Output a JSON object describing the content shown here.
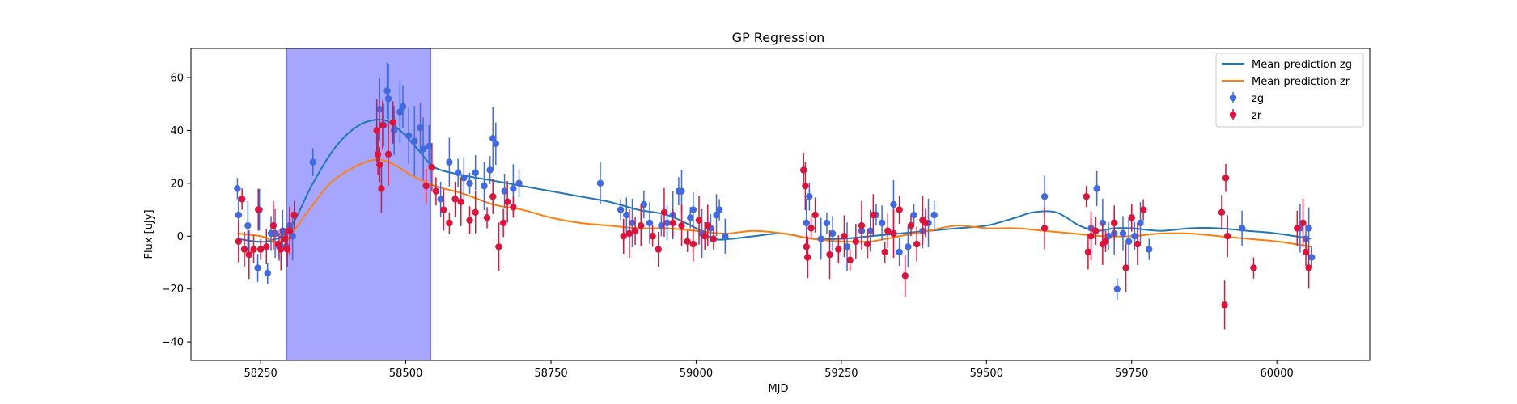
{
  "chart_data": {
    "type": "scatter",
    "title": "GP Regression",
    "xlabel": "MJD",
    "ylabel": "Flux [uJy]",
    "xlim": [
      58130,
      60160
    ],
    "ylim": [
      -47,
      71
    ],
    "xticks": [
      58250,
      58500,
      58750,
      59000,
      59250,
      59500,
      59750,
      60000
    ],
    "yticks": [
      -40,
      -20,
      0,
      20,
      40,
      60
    ],
    "legend_position": "top-right",
    "highlight_span": {
      "x0": 58295,
      "x1": 58543,
      "color": "#a6a6ff"
    },
    "lines": [
      {
        "name": "Mean prediction zg",
        "color": "#1f77b4",
        "x": [
          58210,
          58260,
          58300,
          58340,
          58380,
          58420,
          58460,
          58490,
          58520,
          58550,
          58600,
          58650,
          58700,
          58750,
          58800,
          58850,
          58900,
          58950,
          59000,
          59030,
          59060,
          59100,
          59150,
          59200,
          59250,
          59300,
          59350,
          59400,
          59450,
          59500,
          59550,
          59580,
          59620,
          59660,
          59690,
          59720,
          59750,
          59800,
          59850,
          59900,
          59950,
          60000,
          60060
        ],
        "y": [
          -1,
          -2,
          3,
          20,
          34,
          42,
          44,
          40,
          33,
          26,
          23,
          21,
          19,
          17,
          15,
          13,
          10,
          8,
          3,
          -1,
          -1,
          0,
          1,
          -1,
          -1,
          0,
          1,
          2,
          3,
          4,
          7,
          9,
          9,
          4,
          2,
          3,
          3,
          2,
          3,
          3,
          2,
          1,
          -1
        ]
      },
      {
        "name": "Mean prediction zr",
        "color": "#ff7f0e",
        "x": [
          58210,
          58250,
          58290,
          58330,
          58370,
          58410,
          58450,
          58480,
          58510,
          58550,
          58600,
          58650,
          58700,
          58750,
          58800,
          58850,
          58900,
          58950,
          59000,
          59050,
          59100,
          59150,
          59200,
          59250,
          59300,
          59350,
          59400,
          59450,
          59500,
          59550,
          59600,
          59650,
          59700,
          59750,
          59800,
          59850,
          59900,
          59950,
          60000,
          60060
        ],
        "y": [
          1,
          0,
          -2,
          9,
          20,
          26,
          29,
          27,
          23,
          19,
          16,
          12,
          10,
          7,
          5,
          4,
          3,
          3,
          2,
          1,
          2,
          1,
          -1,
          -2,
          -2,
          0,
          2,
          4,
          3,
          3,
          2,
          1,
          0,
          0,
          1,
          1,
          0,
          -1,
          -2,
          -4
        ]
      }
    ],
    "series": [
      {
        "name": "zg",
        "color": "#4169e1",
        "x": [
          58210,
          58212,
          58228,
          58245,
          58248,
          58262,
          58268,
          58275,
          58282,
          58288,
          58294,
          58300,
          58305,
          58340,
          58455,
          58462,
          58468,
          58470,
          58480,
          58490,
          58495,
          58505,
          58515,
          58525,
          58530,
          58540,
          58560,
          58575,
          58590,
          58600,
          58610,
          58620,
          58635,
          58645,
          58650,
          58655,
          58670,
          58685,
          58695,
          58835,
          58870,
          58880,
          58890,
          58910,
          58920,
          58940,
          58950,
          58960,
          58970,
          58975,
          58990,
          58995,
          59010,
          59025,
          59035,
          59040,
          59050,
          59190,
          59195,
          59215,
          59225,
          59235,
          59260,
          59285,
          59300,
          59310,
          59320,
          59340,
          59350,
          59365,
          59375,
          59390,
          59400,
          59410,
          59600,
          59680,
          59690,
          59700,
          59710,
          59720,
          59725,
          59735,
          59745,
          59755,
          59765,
          59780,
          59940,
          60040,
          60050,
          60055,
          60060
        ],
        "y": [
          18,
          8,
          4,
          -12,
          10,
          -14,
          1,
          1,
          -4,
          2,
          -4,
          4,
          0,
          28,
          48,
          42,
          55,
          52,
          40,
          47,
          49,
          38,
          36,
          41,
          33,
          34,
          14,
          28,
          24,
          22,
          20,
          24,
          19,
          25,
          37,
          35,
          17,
          18,
          20,
          20,
          10,
          8,
          5,
          12,
          5,
          4,
          5,
          8,
          17,
          17,
          7,
          10,
          1,
          3,
          8,
          10,
          0,
          5,
          15,
          -1,
          5,
          1,
          -4,
          2,
          2,
          8,
          5,
          12,
          -6,
          -4,
          8,
          2,
          5,
          8,
          15,
          3,
          18,
          5,
          0,
          1,
          -20,
          1,
          -2,
          0,
          5,
          -5,
          3,
          3,
          -1,
          3,
          -8
        ]
      },
      {
        "name": "zr",
        "color": "#dc143c",
        "x": [
          58212,
          58218,
          58222,
          58230,
          58238,
          58246,
          58250,
          58260,
          58272,
          58280,
          58285,
          58292,
          58296,
          58300,
          58308,
          58450,
          58452,
          58455,
          58458,
          58460,
          58470,
          58478,
          58535,
          58545,
          58552,
          58565,
          58575,
          58585,
          58595,
          58610,
          58620,
          58640,
          58650,
          58660,
          58668,
          58675,
          58685,
          58875,
          58885,
          58895,
          58905,
          58925,
          58935,
          58945,
          58960,
          58975,
          58985,
          58995,
          59005,
          59015,
          59020,
          59030,
          59185,
          59188,
          59190,
          59192,
          59198,
          59205,
          59230,
          59245,
          59255,
          59265,
          59275,
          59285,
          59295,
          59305,
          59325,
          59330,
          59340,
          59350,
          59360,
          59370,
          59380,
          59390,
          59395,
          59600,
          59672,
          59675,
          59680,
          59688,
          59700,
          59705,
          59720,
          59740,
          59750,
          59760,
          59770,
          59905,
          59910,
          59912,
          59915,
          59960,
          60035,
          60045,
          60050,
          60055
        ],
        "y": [
          -2,
          14,
          -5,
          -7,
          -5,
          10,
          -5,
          -4,
          4,
          -3,
          -5,
          -1,
          -5,
          2,
          8,
          40,
          31,
          27,
          18,
          42,
          31,
          43,
          19,
          26,
          17,
          10,
          5,
          14,
          13,
          6,
          9,
          7,
          15,
          -4,
          5,
          13,
          11,
          0,
          1,
          2,
          4,
          0,
          -5,
          9,
          5,
          4,
          -2,
          -3,
          6,
          0,
          4,
          -1,
          25,
          19,
          -4,
          -8,
          3,
          8,
          -7,
          -5,
          0,
          -9,
          -2,
          4,
          -3,
          8,
          -6,
          2,
          1,
          10,
          -15,
          4,
          -3,
          6,
          5,
          3,
          15,
          -6,
          0,
          2,
          -3,
          -2,
          5,
          -12,
          7,
          -3,
          10,
          9,
          -26,
          22,
          0,
          -12,
          3,
          5,
          -6,
          -12
        ]
      }
    ]
  }
}
